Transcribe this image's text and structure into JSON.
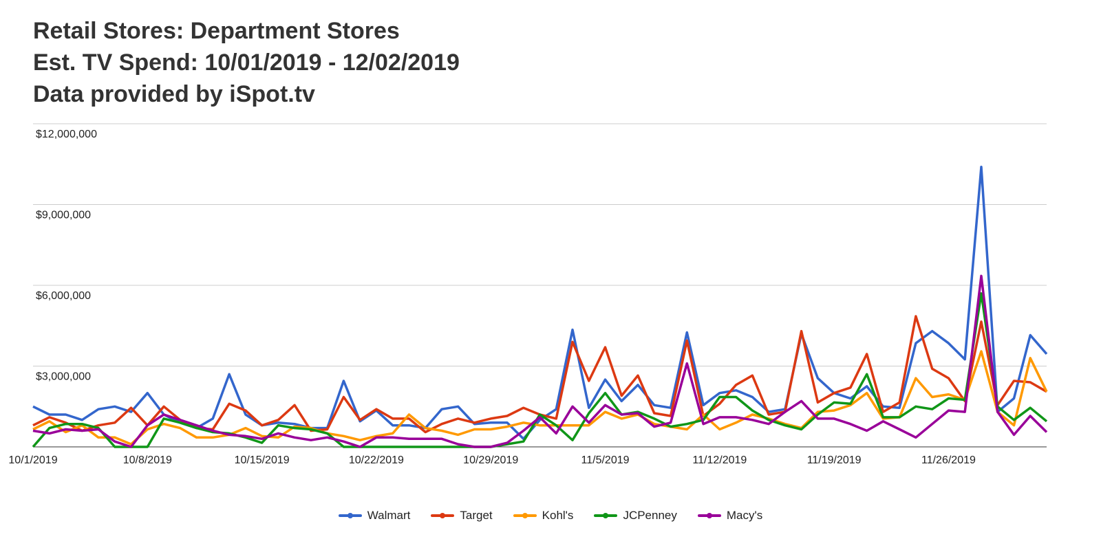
{
  "title": {
    "line1": "Retail Stores: Department Stores",
    "line2": "Est. TV Spend: 10/01/2019 - 12/02/2019",
    "line3": "Data provided by iSpot.tv"
  },
  "chart_data": {
    "type": "line",
    "ylim": [
      0,
      12000000
    ],
    "y_ticks": [
      0,
      3000000,
      6000000,
      9000000,
      12000000
    ],
    "y_tick_labels": [
      "",
      "$3,000,000",
      "$6,000,000",
      "$9,000,000",
      "$12,000,000"
    ],
    "x_tick_labels": [
      "10/1/2019",
      "10/8/2019",
      "10/15/2019",
      "10/22/2019",
      "10/29/2019",
      "11/5/2019",
      "11/12/2019",
      "11/19/2019",
      "11/26/2019"
    ],
    "x_tick_every": 7,
    "grid": true,
    "legend_position": "bottom",
    "x": [
      "10/1/2019",
      "10/2/2019",
      "10/3/2019",
      "10/4/2019",
      "10/5/2019",
      "10/6/2019",
      "10/7/2019",
      "10/8/2019",
      "10/9/2019",
      "10/10/2019",
      "10/11/2019",
      "10/12/2019",
      "10/13/2019",
      "10/14/2019",
      "10/15/2019",
      "10/16/2019",
      "10/17/2019",
      "10/18/2019",
      "10/19/2019",
      "10/20/2019",
      "10/21/2019",
      "10/22/2019",
      "10/23/2019",
      "10/24/2019",
      "10/25/2019",
      "10/26/2019",
      "10/27/2019",
      "10/28/2019",
      "10/29/2019",
      "10/30/2019",
      "10/31/2019",
      "11/1/2019",
      "11/2/2019",
      "11/3/2019",
      "11/4/2019",
      "11/5/2019",
      "11/6/2019",
      "11/7/2019",
      "11/8/2019",
      "11/9/2019",
      "11/10/2019",
      "11/11/2019",
      "11/12/2019",
      "11/13/2019",
      "11/14/2019",
      "11/15/2019",
      "11/16/2019",
      "11/17/2019",
      "11/18/2019",
      "11/19/2019",
      "11/20/2019",
      "11/21/2019",
      "11/22/2019",
      "11/23/2019",
      "11/24/2019",
      "11/25/2019",
      "11/26/2019",
      "11/27/2019",
      "11/28/2019",
      "11/29/2019",
      "11/30/2019",
      "12/1/2019",
      "12/2/2019"
    ],
    "series": [
      {
        "name": "Walmart",
        "color": "#3366cc",
        "values": [
          1500000,
          1200000,
          1200000,
          1000000,
          1400000,
          1500000,
          1300000,
          2000000,
          1200000,
          900000,
          700000,
          1050000,
          2700000,
          1200000,
          800000,
          900000,
          850000,
          700000,
          700000,
          2450000,
          950000,
          1350000,
          800000,
          800000,
          700000,
          1400000,
          1500000,
          850000,
          900000,
          900000,
          300000,
          1000000,
          1400000,
          4350000,
          1450000,
          2500000,
          1700000,
          2300000,
          1550000,
          1450000,
          4250000,
          1550000,
          2000000,
          2100000,
          1850000,
          1300000,
          1400000,
          4200000,
          2550000,
          2000000,
          1800000,
          2250000,
          1500000,
          1450000,
          3850000,
          4300000,
          3850000,
          3250000,
          10400000,
          1300000,
          1800000,
          4150000,
          3450000
        ]
      },
      {
        "name": "Target",
        "color": "#dc3912",
        "values": [
          800000,
          1100000,
          900000,
          600000,
          800000,
          900000,
          1450000,
          800000,
          1500000,
          1000000,
          700000,
          650000,
          1600000,
          1350000,
          800000,
          1000000,
          1550000,
          600000,
          650000,
          1850000,
          1000000,
          1400000,
          1050000,
          1050000,
          550000,
          850000,
          1050000,
          900000,
          1050000,
          1150000,
          1450000,
          1200000,
          1050000,
          3900000,
          2450000,
          3700000,
          1900000,
          2650000,
          1250000,
          1150000,
          3950000,
          1150000,
          1600000,
          2300000,
          2650000,
          1200000,
          1300000,
          4300000,
          1650000,
          2000000,
          2200000,
          3450000,
          1300000,
          1650000,
          4850000,
          2900000,
          2550000,
          1700000,
          4650000,
          1550000,
          2450000,
          2400000,
          2050000
        ]
      },
      {
        "name": "Kohl's",
        "color": "#ff9900",
        "values": [
          650000,
          950000,
          550000,
          800000,
          350000,
          350000,
          100000,
          650000,
          850000,
          700000,
          350000,
          350000,
          450000,
          700000,
          400000,
          350000,
          750000,
          700000,
          500000,
          400000,
          250000,
          400000,
          500000,
          1200000,
          700000,
          600000,
          450000,
          650000,
          650000,
          750000,
          900000,
          800000,
          800000,
          800000,
          800000,
          1300000,
          1050000,
          1200000,
          850000,
          750000,
          650000,
          1200000,
          650000,
          900000,
          1200000,
          1050000,
          850000,
          700000,
          1300000,
          1350000,
          1550000,
          2000000,
          1050000,
          1100000,
          2550000,
          1850000,
          1950000,
          1750000,
          3550000,
          1300000,
          800000,
          3300000,
          2050000
        ]
      },
      {
        "name": "JCPenney",
        "color": "#109618",
        "values": [
          0,
          700000,
          850000,
          850000,
          700000,
          0,
          0,
          0,
          1050000,
          900000,
          700000,
          550000,
          500000,
          350000,
          150000,
          800000,
          700000,
          650000,
          500000,
          0,
          0,
          0,
          0,
          0,
          0,
          0,
          0,
          0,
          0,
          100000,
          200000,
          1200000,
          800000,
          250000,
          1250000,
          2000000,
          1200000,
          1300000,
          1050000,
          750000,
          850000,
          1000000,
          1850000,
          1850000,
          1350000,
          1000000,
          800000,
          650000,
          1200000,
          1650000,
          1600000,
          2700000,
          1100000,
          1100000,
          1500000,
          1400000,
          1800000,
          1750000,
          5700000,
          1500000,
          1000000,
          1450000,
          950000
        ]
      },
      {
        "name": "Macy's",
        "color": "#990099",
        "values": [
          600000,
          500000,
          650000,
          600000,
          650000,
          200000,
          0,
          800000,
          1200000,
          1000000,
          800000,
          600000,
          450000,
          400000,
          300000,
          500000,
          350000,
          250000,
          350000,
          200000,
          0,
          350000,
          350000,
          300000,
          300000,
          300000,
          100000,
          0,
          0,
          150000,
          600000,
          1100000,
          500000,
          1500000,
          900000,
          1550000,
          1200000,
          1250000,
          750000,
          900000,
          3100000,
          850000,
          1100000,
          1100000,
          1000000,
          850000,
          1300000,
          1700000,
          1050000,
          1050000,
          850000,
          600000,
          950000,
          650000,
          350000,
          850000,
          1350000,
          1300000,
          6350000,
          1300000,
          450000,
          1150000,
          550000
        ]
      }
    ]
  }
}
